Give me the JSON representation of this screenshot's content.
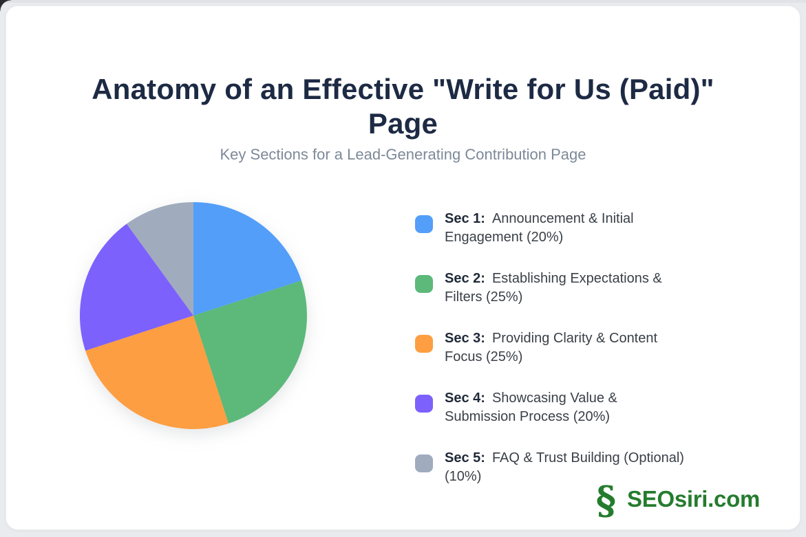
{
  "page": {
    "background_color": "#e9ebee",
    "card_color": "#ffffff"
  },
  "header": {
    "title": "Anatomy of an Effective \"Write for Us (Paid)\"\nPage",
    "subtitle": "Key Sections for a Lead-Generating Contribution Page",
    "title_color": "#1d2a44",
    "subtitle_color": "#7d8998"
  },
  "chart_data": {
    "type": "pie",
    "title": "Anatomy of an Effective \"Write for Us (Paid)\" Page",
    "subtitle": "Key Sections for a Lead-Generating Contribution Page",
    "categories": [
      "Sec 1: Announcement & Initial Engagement",
      "Sec 2: Establishing Expectations & Filters",
      "Sec 3: Providing Clarity & Content Focus",
      "Sec 4: Showcasing Value & Submission Process",
      "Sec 5: FAQ & Trust Building (Optional)"
    ],
    "values": [
      20,
      25,
      25,
      20,
      10
    ],
    "unit": "percent",
    "colors": [
      "#539ef9",
      "#5cb97a",
      "#fd9e42",
      "#7d61fc",
      "#a0acbe"
    ],
    "start_angle_deg": 0,
    "direction": "clockwise",
    "legend_position": "right",
    "donut": false
  },
  "legend": {
    "items": [
      {
        "label_bold": "Sec 1:",
        "label_text": "Announcement & Initial\nEngagement (20%)"
      },
      {
        "label_bold": "Sec 2:",
        "label_text": "Establishing Expectations &\nFilters (25%)"
      },
      {
        "label_bold": "Sec 3:",
        "label_text": "Providing Clarity & Content\nFocus (25%)"
      },
      {
        "label_bold": "Sec 4:",
        "label_text": "Showcasing Value &\nSubmission Process (20%)"
      },
      {
        "label_bold": "Sec 5:",
        "label_text": "FAQ & Trust Building (Optional)\n(10%)"
      }
    ]
  },
  "footer": {
    "logo_symbol": "§",
    "logo_text": "SEOsiri.com",
    "logo_color": "#257c2e"
  }
}
